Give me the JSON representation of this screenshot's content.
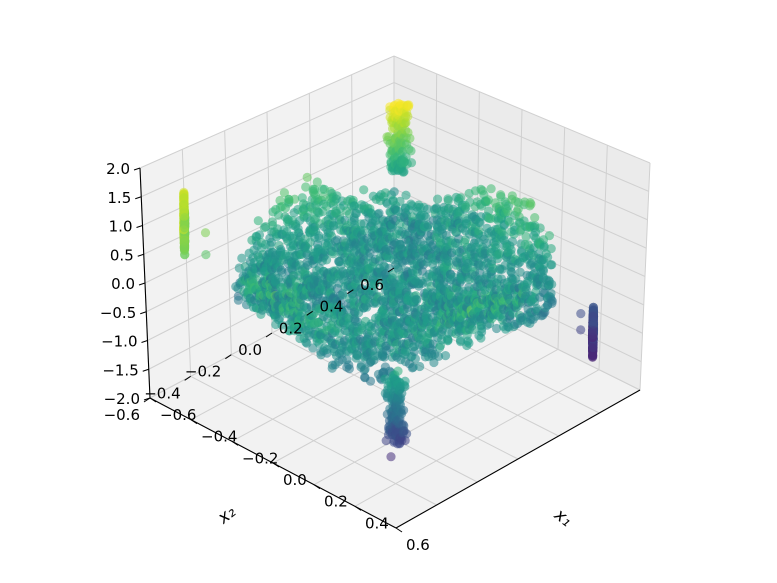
{
  "chart_data": {
    "type": "scatter",
    "projection": "3d",
    "xlabel": "x₁",
    "ylabel": "x₂",
    "zlabel": "",
    "xlim": [
      -0.6,
      0.6
    ],
    "ylim": [
      -0.6,
      0.6
    ],
    "zlim": [
      -2.0,
      2.0
    ],
    "x_ticks": [
      "−0.6",
      "−0.4",
      "−0.2",
      "0.0",
      "0.2",
      "0.4",
      "0.6"
    ],
    "y_ticks": [
      "−0.6",
      "−0.4",
      "−0.2",
      "0.0",
      "0.2",
      "0.4",
      "0.6"
    ],
    "z_ticks": [
      "−2.0",
      "−1.5",
      "−1.0",
      "−0.5",
      "0.0",
      "0.5",
      "1.0",
      "1.5",
      "2.0"
    ],
    "x_tick_values": [
      -0.6,
      -0.4,
      -0.2,
      0.0,
      0.2,
      0.4,
      0.6
    ],
    "y_tick_values": [
      -0.6,
      -0.4,
      -0.2,
      0.0,
      0.2,
      0.4,
      0.6
    ],
    "z_tick_values": [
      -2.0,
      -1.5,
      -1.0,
      -0.5,
      0.0,
      0.5,
      1.0,
      1.5,
      2.0
    ],
    "grid": true,
    "colormap": "viridis",
    "color_by": "z",
    "marker_alpha": 0.55,
    "sample_points": [
      {
        "x": 0.0,
        "y": 0.0,
        "z": 0.0
      },
      {
        "x": 0.1,
        "y": 0.1,
        "z": 0.1
      },
      {
        "x": -0.1,
        "y": -0.1,
        "z": -0.1
      },
      {
        "x": 0.2,
        "y": -0.2,
        "z": 0.0
      },
      {
        "x": -0.2,
        "y": 0.2,
        "z": 0.0
      },
      {
        "x": 0.3,
        "y": 0.0,
        "z": 0.2
      },
      {
        "x": -0.3,
        "y": 0.0,
        "z": 0.3
      },
      {
        "x": 0.0,
        "y": 0.3,
        "z": -0.2
      },
      {
        "x": 0.0,
        "y": -0.3,
        "z": -0.3
      },
      {
        "x": -0.45,
        "y": 0.45,
        "z": 0.0
      },
      {
        "x": 0.45,
        "y": -0.45,
        "z": 0.0
      },
      {
        "x": -0.45,
        "y": -0.45,
        "z": 0.9
      },
      {
        "x": 0.45,
        "y": 0.45,
        "z": -0.9
      },
      {
        "x": -0.52,
        "y": 0.5,
        "z": 1.3
      },
      {
        "x": -0.5,
        "y": 0.52,
        "z": 1.0
      },
      {
        "x": 0.5,
        "y": -0.52,
        "z": -1.1
      },
      {
        "x": 0.52,
        "y": -0.5,
        "z": 0.4
      },
      {
        "x": -0.4,
        "y": -0.5,
        "z": 0.7
      },
      {
        "x": 0.4,
        "y": 0.5,
        "z": -0.8
      },
      {
        "x": -0.2,
        "y": -0.4,
        "z": 0.5
      },
      {
        "x": 0.2,
        "y": 0.4,
        "z": -0.5
      }
    ]
  }
}
